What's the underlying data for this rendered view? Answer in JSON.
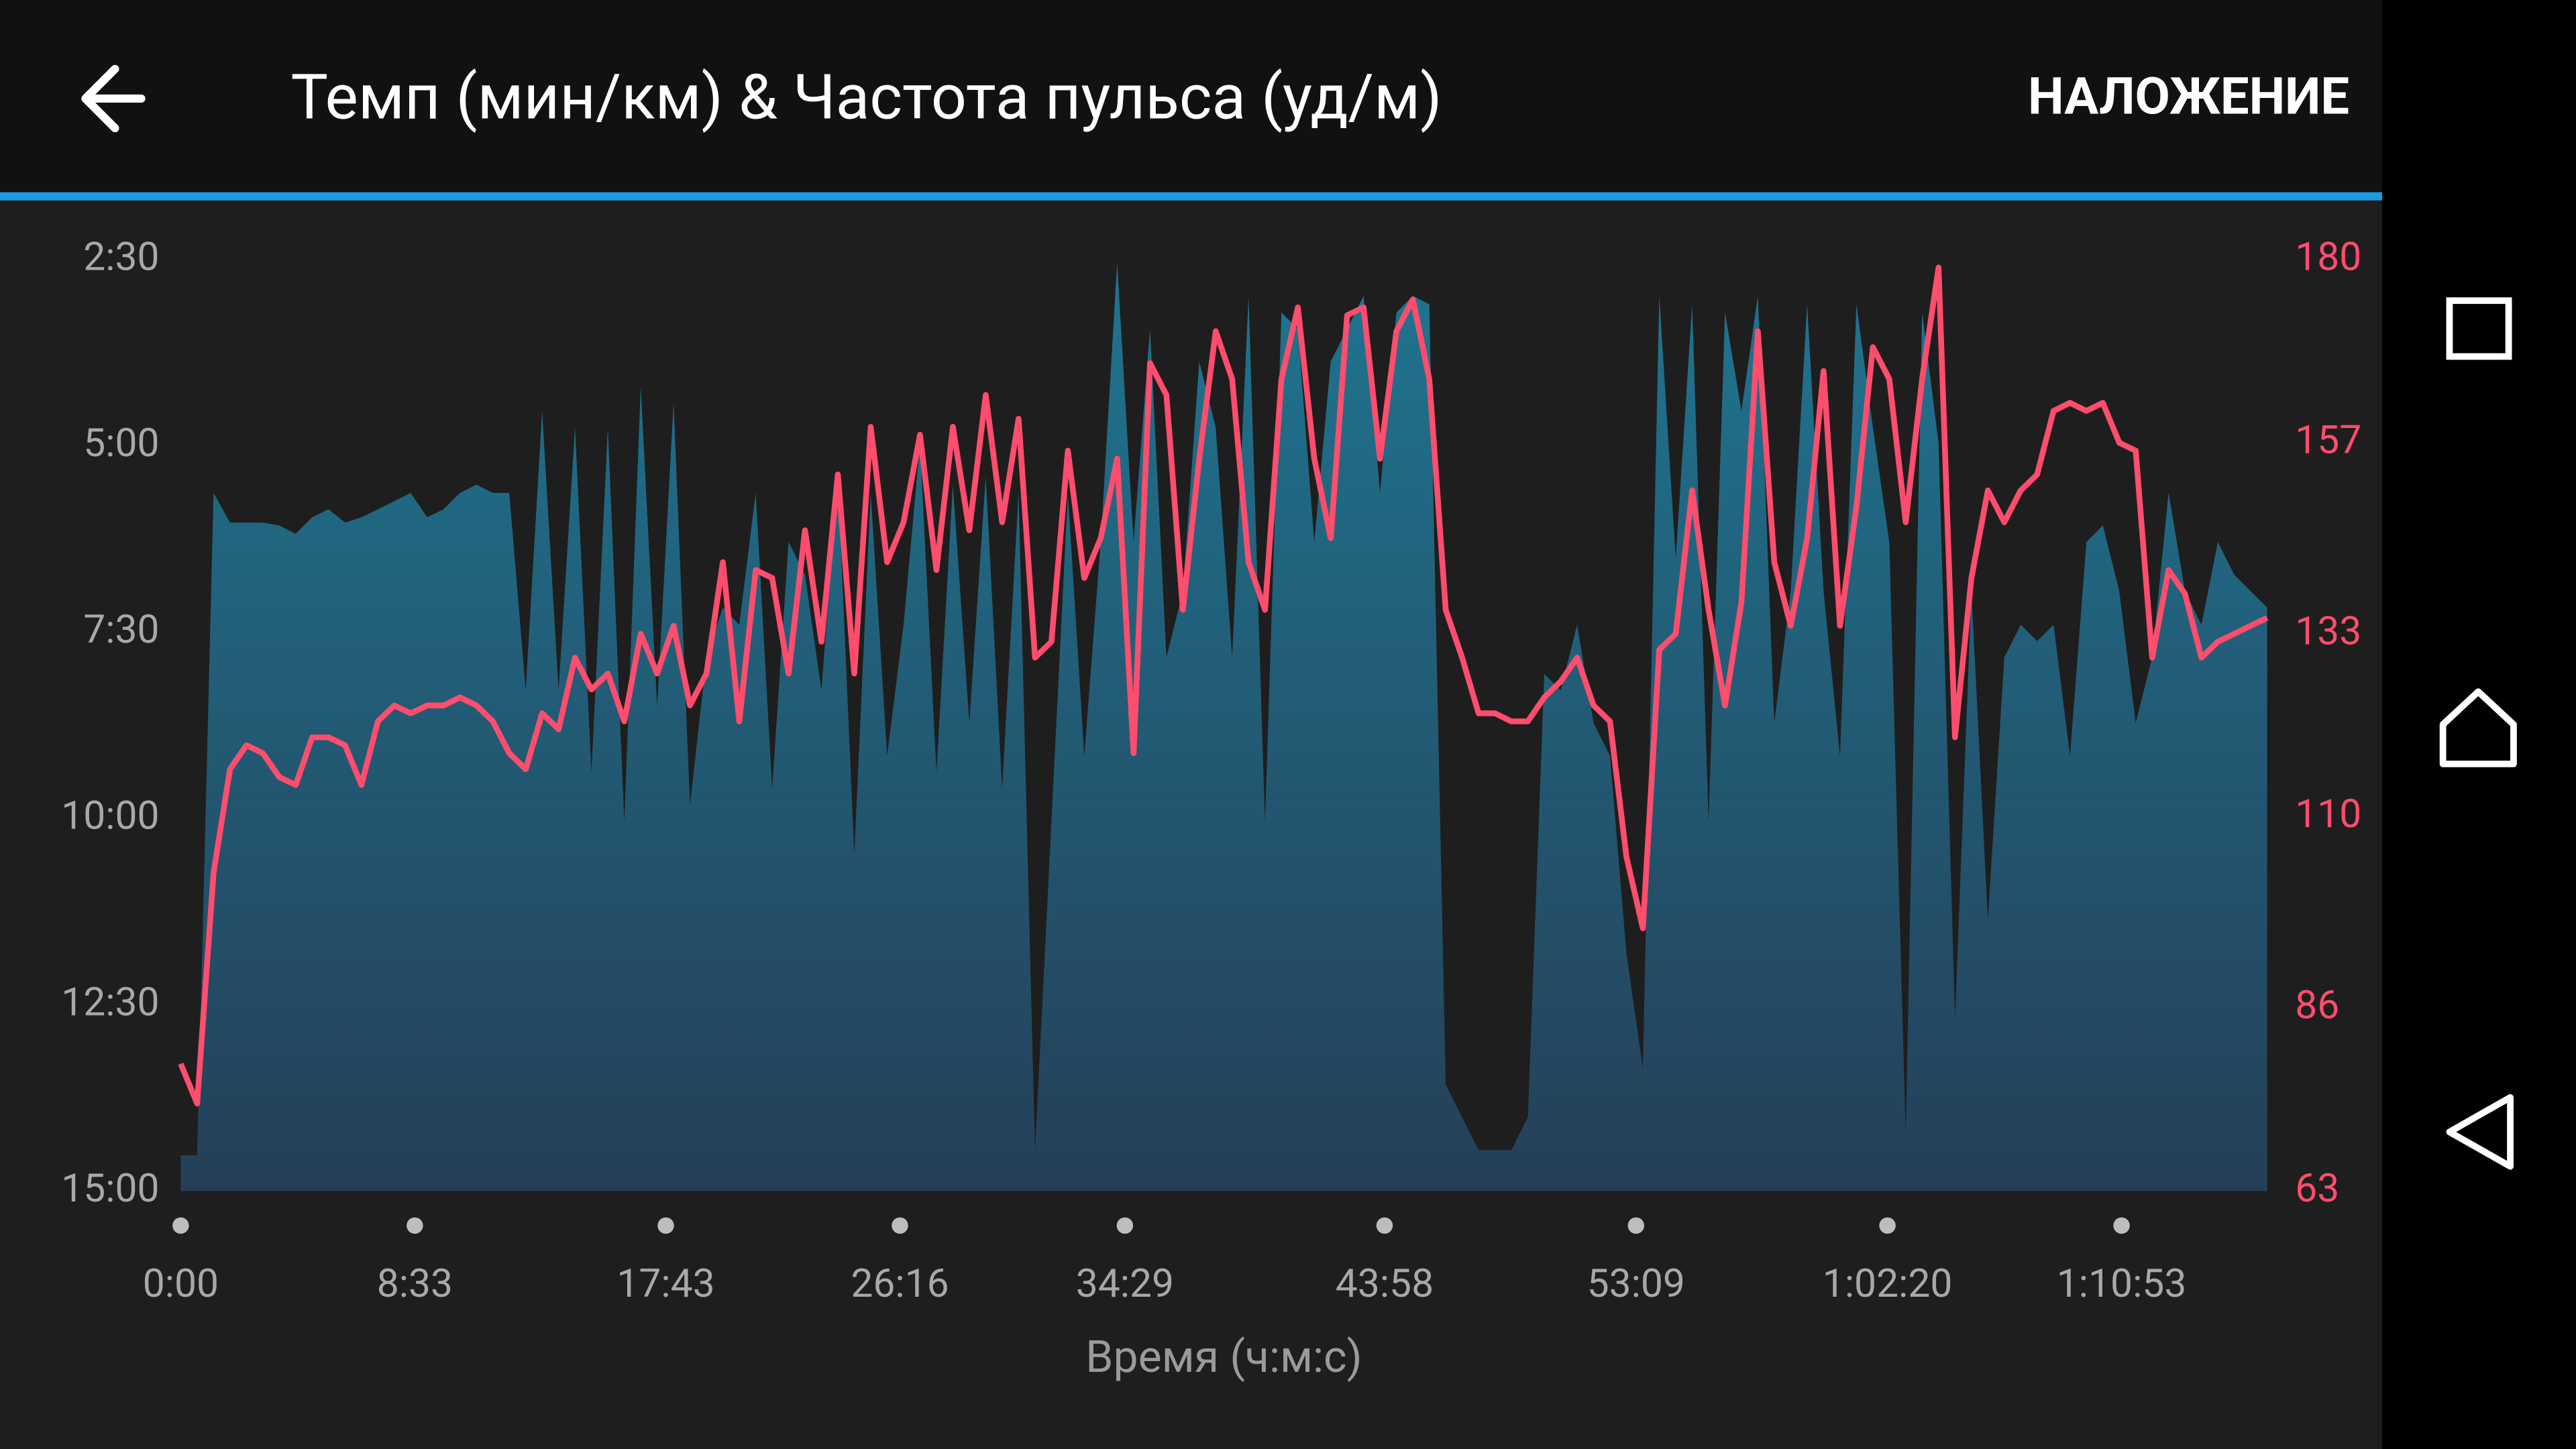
{
  "header": {
    "action": "НАЛОЖЕНИЕ"
  },
  "chart_data": {
    "type": "line",
    "title": "Темп (мин/км) & Частота пульса (уд/м)",
    "xlabel": "Время (ч:м:с)",
    "x": [
      0,
      36,
      72,
      108,
      144,
      180,
      216,
      252,
      288,
      324,
      360,
      396,
      432,
      468,
      504,
      540,
      576,
      612,
      648,
      684,
      720,
      756,
      792,
      828,
      864,
      900,
      936,
      972,
      1008,
      1044,
      1080,
      1116,
      1152,
      1188,
      1224,
      1260,
      1296,
      1332,
      1368,
      1404,
      1440,
      1476,
      1512,
      1548,
      1584,
      1620,
      1656,
      1692,
      1728,
      1764,
      1800,
      1836,
      1872,
      1908,
      1944,
      1980,
      2016,
      2052,
      2088,
      2124,
      2160,
      2196,
      2232,
      2268,
      2304,
      2340,
      2376,
      2412,
      2448,
      2484,
      2520,
      2556,
      2592,
      2628,
      2664,
      2700,
      2736,
      2772,
      2808,
      2844,
      2880,
      2916,
      2952,
      2988,
      3024,
      3060,
      3096,
      3132,
      3168,
      3204,
      3240,
      3276,
      3312,
      3348,
      3384,
      3420,
      3456,
      3492,
      3528,
      3564,
      3600,
      3636,
      3672,
      3708,
      3744,
      3780,
      3816,
      3852,
      3888,
      3924,
      3960,
      3996,
      4032,
      4068,
      4104,
      4140,
      4176,
      4212,
      4248,
      4284,
      4320,
      4356,
      4392,
      4428,
      4464,
      4500,
      4536,
      4572
    ],
    "xlim": [
      0,
      4572
    ],
    "xticks": [
      {
        "value": 0,
        "label": "0:00"
      },
      {
        "value": 513,
        "label": "8:33"
      },
      {
        "value": 1063,
        "label": "17:43"
      },
      {
        "value": 1576,
        "label": "26:16"
      },
      {
        "value": 2069,
        "label": "34:29"
      },
      {
        "value": 2638,
        "label": "43:58"
      },
      {
        "value": 3189,
        "label": "53:09"
      },
      {
        "value": 3740,
        "label": "1:02:20"
      },
      {
        "value": 4253,
        "label": "1:10:53"
      }
    ],
    "ylim": [
      15,
      2.5
    ],
    "yticks": [
      {
        "value": 2.5,
        "label": "2:30"
      },
      {
        "value": 5,
        "label": "5:00"
      },
      {
        "value": 7.5,
        "label": "7:30"
      },
      {
        "value": 10,
        "label": "10:00"
      },
      {
        "value": 12.5,
        "label": "12:30"
      },
      {
        "value": 15,
        "label": "15:00"
      }
    ],
    "y2lim": [
      63,
      180
    ],
    "y2ticks": [
      180,
      157,
      133,
      110,
      86,
      63
    ],
    "series": [
      {
        "area": true,
        "color": "#1f6d88",
        "values": [
          14.52,
          14.52,
          5.63,
          6.03,
          6.03,
          6.03,
          6.07,
          6.18,
          5.96,
          5.85,
          6.03,
          5.96,
          5.85,
          5.74,
          5.63,
          5.96,
          5.85,
          5.63,
          5.52,
          5.63,
          5.63,
          8.28,
          4.53,
          8.28,
          4.75,
          9.38,
          4.75,
          10.04,
          4.2,
          8.5,
          4.42,
          9.82,
          7.84,
          7.17,
          7.4,
          5.63,
          9.6,
          6.29,
          6.73,
          8.28,
          5.41,
          10.48,
          5.63,
          9.16,
          7.4,
          4.97,
          9.38,
          5.52,
          8.72,
          5.41,
          9.6,
          5.63,
          14.45,
          10.04,
          5.63,
          9.16,
          6.29,
          2.54,
          6.29,
          3.43,
          7.84,
          6.95,
          3.87,
          4.75,
          7.84,
          2.99,
          10.04,
          3.21,
          3.43,
          6.29,
          3.87,
          3.43,
          2.99,
          5.63,
          3.21,
          2.99,
          3.1,
          13.57,
          14.01,
          14.45,
          14.45,
          14.45,
          14.01,
          8.06,
          8.28,
          7.4,
          8.72,
          9.16,
          11.81,
          13.35,
          2.99,
          6.51,
          3.1,
          10.04,
          3.21,
          4.53,
          2.99,
          8.72,
          6.95,
          3.1,
          6.95,
          9.16,
          3.1,
          4.75,
          6.29,
          14.23,
          3.21,
          4.97,
          12.69,
          6.95,
          11.36,
          7.84,
          7.4,
          7.62,
          7.4,
          9.16,
          6.29,
          6.07,
          6.95,
          8.72,
          7.84,
          5.63,
          6.95,
          7.4,
          6.29,
          6.73,
          6.95,
          7.17
        ]
      },
      {
        "axis": "y2",
        "color": "#ff4d6d",
        "values": [
          79,
          74,
          103,
          116,
          119,
          118,
          115,
          114,
          120,
          120,
          119,
          114,
          122,
          124,
          123,
          124,
          124,
          125,
          124,
          122,
          118,
          116,
          123,
          121,
          130,
          126,
          128,
          122,
          133,
          128,
          134,
          124,
          128,
          142,
          122,
          141,
          140,
          128,
          146,
          132,
          153,
          128,
          159,
          142,
          147,
          158,
          141,
          159,
          146,
          163,
          147,
          160,
          130,
          132,
          156,
          140,
          145,
          155,
          118,
          167,
          163,
          136,
          155,
          171,
          165,
          142,
          136,
          165,
          174,
          155,
          145,
          173,
          174,
          155,
          171,
          175,
          165,
          136,
          130,
          123,
          123,
          122,
          122,
          125,
          127,
          130,
          124,
          122,
          105,
          96,
          131,
          133,
          151,
          136,
          124,
          137,
          171,
          142,
          134,
          145,
          166,
          134,
          149,
          169,
          165,
          147,
          165,
          179,
          120,
          140,
          151,
          147,
          151,
          153,
          161,
          162,
          161,
          162,
          157,
          156,
          130,
          141,
          138,
          130,
          132,
          133,
          134,
          135
        ]
      }
    ]
  }
}
